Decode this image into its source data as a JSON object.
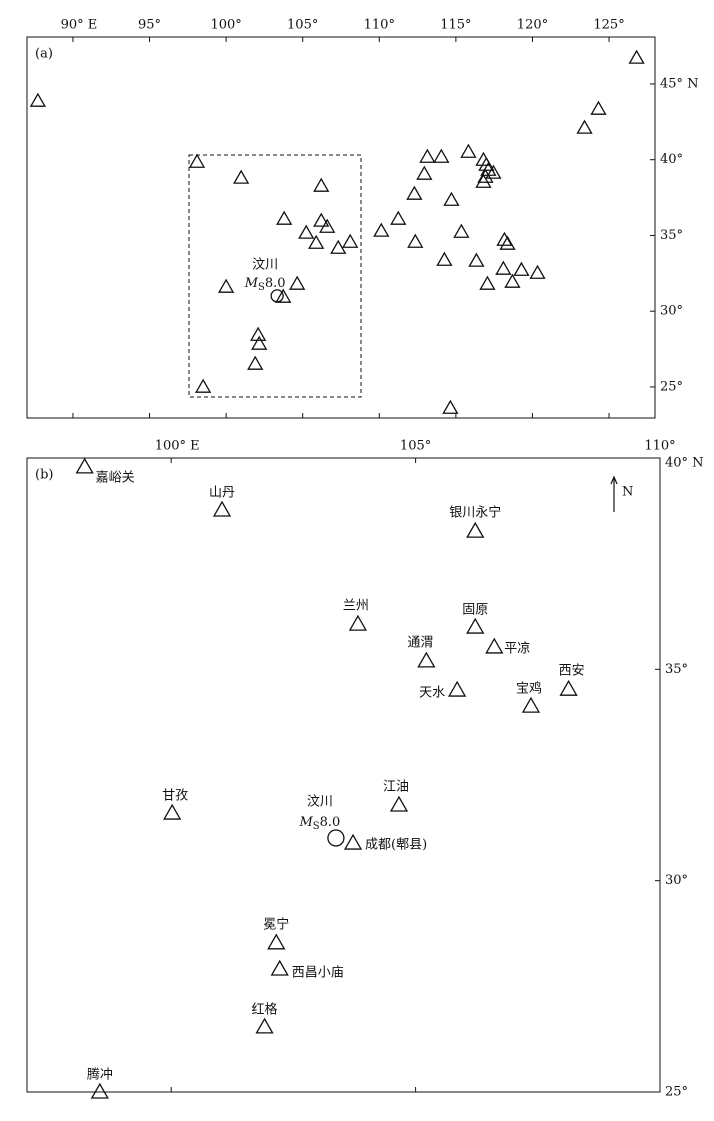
{
  "panels": [
    {
      "label": "(a)",
      "xlim": [
        87,
        128
      ],
      "ylim": [
        22.95,
        48.1
      ],
      "xticks": [
        {
          "value": 90,
          "label": "90° E"
        },
        {
          "value": 95,
          "label": "95°"
        },
        {
          "value": 100,
          "label": "100°"
        },
        {
          "value": 105,
          "label": "105°"
        },
        {
          "value": 110,
          "label": "110°"
        },
        {
          "value": 115,
          "label": "115°"
        },
        {
          "value": 120,
          "label": "120°"
        },
        {
          "value": 125,
          "label": "125°"
        }
      ],
      "yticks": [
        {
          "value": 45,
          "label": "45° N"
        },
        {
          "value": 40,
          "label": "40°"
        },
        {
          "value": 35,
          "label": "35°"
        },
        {
          "value": 30,
          "label": "30°"
        },
        {
          "value": 25,
          "label": "25°"
        }
      ],
      "stations": {
        "lon": [
          87.71,
          126.8,
          124.31,
          123.4,
          98.1,
          100.98,
          106.21,
          103.79,
          105.23,
          106.21,
          106.6,
          105.88,
          107.32,
          108.1,
          110.13,
          111.24,
          112.35,
          114.25,
          115.36,
          114.71,
          112.29,
          112.94,
          113.14,
          114.05,
          115.82,
          116.8,
          116.99,
          117.12,
          117.45,
          116.93,
          116.8,
          118.17,
          118.37,
          116.34,
          118.1,
          119.28,
          120.33,
          117.06,
          118.69,
          100.0,
          104.64,
          103.73,
          102.09,
          102.16,
          101.9,
          98.5,
          114.64
        ],
        "lat": [
          43.88,
          46.72,
          43.35,
          42.1,
          39.85,
          38.8,
          38.27,
          36.09,
          35.17,
          35.96,
          35.56,
          34.5,
          34.17,
          34.57,
          35.3,
          36.09,
          34.57,
          33.38,
          35.23,
          37.34,
          37.74,
          39.06,
          40.18,
          40.18,
          40.51,
          39.98,
          39.65,
          39.32,
          39.13,
          38.86,
          38.53,
          34.7,
          34.44,
          33.32,
          32.79,
          32.72,
          32.52,
          31.8,
          31.93,
          31.6,
          31.8,
          30.94,
          28.43,
          27.84,
          26.52,
          25.0,
          23.61
        ]
      },
      "epicenter": {
        "name": "汶川",
        "magnitude_symbol": "M",
        "magnitude_subscript": "S",
        "magnitude": "8.0",
        "lon": 103.33,
        "lat": 31.01
      }
    },
    {
      "label": "(b)",
      "xlim": [
        97.05,
        110
      ],
      "ylim": [
        25,
        40
      ],
      "xticks": [
        {
          "value": 100,
          "label": "100° E"
        },
        {
          "value": 105,
          "label": "105°"
        },
        {
          "value": 110,
          "label": "110°"
        }
      ],
      "yticks": [
        {
          "value": 40,
          "label": "40° N"
        },
        {
          "value": 35,
          "label": "35°"
        },
        {
          "value": 30,
          "label": "30°"
        },
        {
          "value": 25,
          "label": "25°"
        }
      ],
      "stations": {
        "names": [
          "嘉峪关",
          "山丹",
          "银川永宁",
          "兰州",
          "固原",
          "平凉",
          "通渭",
          "天水",
          "宝鸡",
          "西安",
          "江油",
          "甘孜",
          "成都(郫县)",
          "冕宁",
          "西昌小庙",
          "红格",
          "腾冲"
        ],
        "lon": [
          98.23,
          101.04,
          106.22,
          103.82,
          106.22,
          106.61,
          105.22,
          105.85,
          107.36,
          108.13,
          104.66,
          100.02,
          103.72,
          102.15,
          102.22,
          101.91,
          98.54
        ],
        "lat": [
          39.79,
          38.77,
          38.27,
          36.07,
          36.0,
          35.53,
          35.2,
          34.51,
          34.13,
          34.53,
          31.79,
          31.6,
          30.89,
          28.53,
          27.91,
          26.54,
          25.0
        ]
      },
      "epicenter": {
        "name": "汶川",
        "magnitude_symbol": "M",
        "magnitude_subscript": "S",
        "magnitude": "8.0",
        "lon": 103.37,
        "lat": 31.01
      }
    }
  ],
  "north": "N"
}
